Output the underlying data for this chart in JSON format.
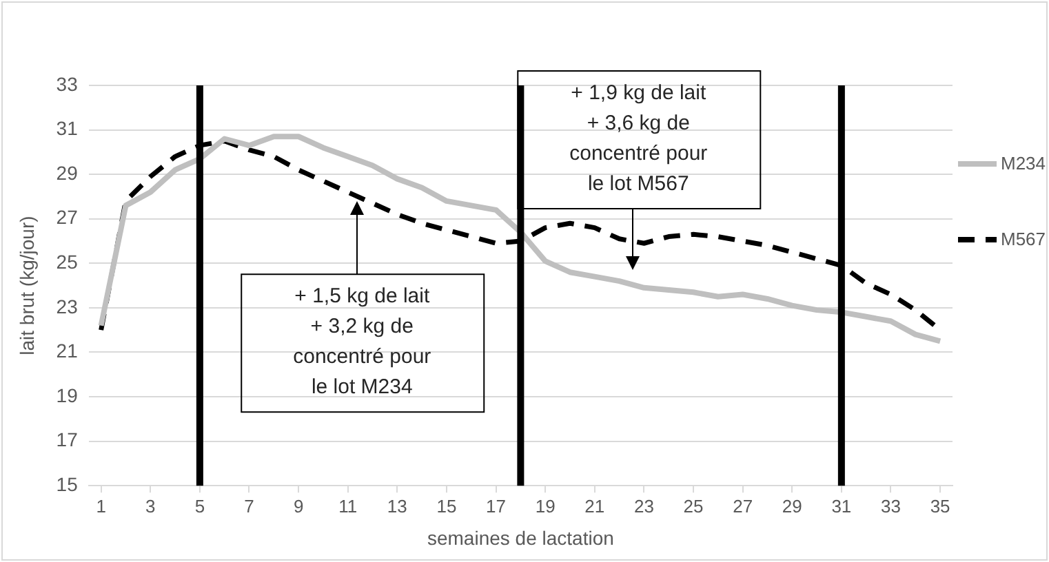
{
  "chart_data": {
    "type": "line",
    "xlabel": "semaines de lactation",
    "ylabel": "lait brut (kg/jour)",
    "x": [
      1,
      2,
      3,
      4,
      5,
      6,
      7,
      8,
      9,
      10,
      11,
      12,
      13,
      14,
      15,
      16,
      17,
      18,
      19,
      20,
      21,
      22,
      23,
      24,
      25,
      26,
      27,
      28,
      29,
      30,
      31,
      32,
      33,
      34,
      35
    ],
    "xlim": [
      0.5,
      35.5
    ],
    "xticks": [
      1,
      3,
      5,
      7,
      9,
      11,
      13,
      15,
      17,
      19,
      21,
      23,
      25,
      27,
      29,
      31,
      33,
      35
    ],
    "ylim": [
      15,
      33
    ],
    "yticks": [
      15,
      17,
      19,
      21,
      23,
      25,
      27,
      29,
      31,
      33
    ],
    "grid": "y",
    "legend": "right",
    "marker": "none",
    "series": [
      {
        "name": "M234",
        "color": "#bfbfbf",
        "line_style": "solid",
        "values": [
          22.2,
          27.6,
          28.2,
          29.2,
          29.7,
          30.6,
          30.3,
          30.7,
          30.7,
          30.2,
          29.8,
          29.4,
          28.8,
          28.4,
          27.8,
          27.6,
          27.4,
          26.4,
          25.1,
          24.6,
          24.4,
          24.2,
          23.9,
          23.8,
          23.7,
          23.5,
          23.6,
          23.4,
          23.1,
          22.9,
          22.8,
          22.6,
          22.4,
          21.8,
          21.5
        ]
      },
      {
        "name": "M567",
        "color": "#000000",
        "line_style": "dashed",
        "values": [
          22.0,
          27.8,
          28.9,
          29.8,
          30.3,
          30.5,
          30.1,
          29.8,
          29.2,
          28.7,
          28.2,
          27.7,
          27.2,
          26.8,
          26.5,
          26.2,
          25.9,
          26.0,
          26.6,
          26.8,
          26.6,
          26.1,
          25.9,
          26.2,
          26.3,
          26.2,
          26.0,
          25.8,
          25.5,
          25.2,
          24.9,
          24.1,
          23.6,
          22.9,
          22.0
        ]
      }
    ],
    "ref_lines": [
      {
        "axis": "x",
        "value": 5,
        "color": "#000000"
      },
      {
        "axis": "x",
        "value": 18,
        "color": "#000000"
      },
      {
        "axis": "x",
        "value": 31,
        "color": "#000000"
      }
    ],
    "annotations": [
      "+ 1,5 kg de lait + 3,2 kg de concentré pour le lot M234",
      "+ 1,9 kg de lait + 3,6 kg de concentré pour le lot M567"
    ]
  }
}
